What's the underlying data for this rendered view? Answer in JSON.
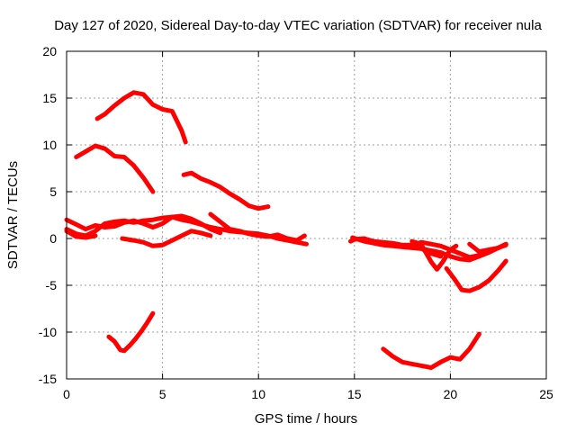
{
  "chart_data": {
    "type": "line",
    "title": "Day 127 of 2020, Sidereal Day-to-day VTEC variation (SDTVAR) for receiver nula",
    "xlabel": "GPS time / hours",
    "ylabel": "SDTVAR / TECUs",
    "xlim": [
      0,
      25
    ],
    "ylim": [
      -15,
      20
    ],
    "xticks": [
      0,
      5,
      10,
      15,
      20,
      25
    ],
    "yticks": [
      -15,
      -10,
      -5,
      0,
      5,
      10,
      15,
      20
    ],
    "grid": true,
    "color": "#ff0000",
    "series": [
      {
        "name": "s1",
        "points": [
          [
            1.6,
            12.8
          ],
          [
            2.0,
            13.3
          ],
          [
            2.5,
            14.2
          ],
          [
            3.0,
            15.0
          ],
          [
            3.5,
            15.6
          ],
          [
            4.0,
            15.4
          ],
          [
            4.5,
            14.3
          ],
          [
            5.0,
            13.8
          ],
          [
            5.5,
            13.6
          ],
          [
            6.0,
            11.5
          ],
          [
            6.2,
            10.3
          ]
        ]
      },
      {
        "name": "s2",
        "points": [
          [
            0.5,
            8.7
          ],
          [
            1.0,
            9.3
          ],
          [
            1.5,
            9.9
          ],
          [
            2.0,
            9.6
          ],
          [
            2.5,
            8.8
          ],
          [
            3.0,
            8.7
          ],
          [
            3.5,
            7.8
          ],
          [
            4.0,
            6.5
          ],
          [
            4.5,
            5.0
          ]
        ]
      },
      {
        "name": "s3",
        "points": [
          [
            6.1,
            6.8
          ],
          [
            6.5,
            7.0
          ],
          [
            7.0,
            6.4
          ],
          [
            7.5,
            6.0
          ],
          [
            8.0,
            5.5
          ],
          [
            8.5,
            4.8
          ],
          [
            9.0,
            4.2
          ],
          [
            9.5,
            3.5
          ],
          [
            10.0,
            3.2
          ],
          [
            10.5,
            3.4
          ]
        ]
      },
      {
        "name": "s4",
        "points": [
          [
            0.0,
            2.0
          ],
          [
            0.5,
            1.5
          ],
          [
            1.0,
            1.0
          ],
          [
            1.5,
            1.4
          ],
          [
            2.0,
            1.2
          ],
          [
            2.5,
            1.3
          ],
          [
            3.0,
            1.7
          ],
          [
            3.5,
            1.9
          ],
          [
            4.0,
            1.6
          ],
          [
            4.5,
            1.2
          ],
          [
            5.0,
            1.6
          ],
          [
            5.5,
            2.3
          ],
          [
            6.0,
            2.0
          ],
          [
            6.5,
            1.8
          ],
          [
            7.0,
            1.5
          ],
          [
            7.5,
            1.2
          ],
          [
            8.0,
            1.0
          ],
          [
            8.5,
            0.8
          ],
          [
            9.0,
            0.7
          ],
          [
            9.5,
            0.6
          ],
          [
            10.0,
            0.5
          ],
          [
            10.5,
            0.3
          ],
          [
            11.0,
            0.0
          ],
          [
            11.5,
            -0.2
          ],
          [
            12.0,
            -0.4
          ],
          [
            12.5,
            -0.6
          ]
        ]
      },
      {
        "name": "s5",
        "points": [
          [
            0.0,
            1.0
          ],
          [
            0.5,
            0.5
          ],
          [
            1.0,
            0.3
          ],
          [
            1.5,
            0.8
          ],
          [
            2.0,
            1.6
          ],
          [
            2.5,
            1.8
          ],
          [
            3.0,
            1.9
          ],
          [
            3.5,
            1.7
          ],
          [
            4.0,
            1.9
          ],
          [
            4.5,
            2.0
          ],
          [
            5.0,
            2.2
          ],
          [
            5.5,
            2.3
          ],
          [
            6.0,
            2.4
          ],
          [
            6.5,
            2.1
          ],
          [
            7.0,
            1.6
          ],
          [
            7.5,
            1.0
          ],
          [
            8.0,
            0.6
          ]
        ]
      },
      {
        "name": "s6",
        "points": [
          [
            0.0,
            0.8
          ],
          [
            0.5,
            0.2
          ],
          [
            1.0,
            0.1
          ],
          [
            1.5,
            0.3
          ]
        ]
      },
      {
        "name": "s7",
        "points": [
          [
            2.9,
            0.0
          ],
          [
            3.5,
            -0.2
          ],
          [
            4.0,
            -0.4
          ],
          [
            4.5,
            -0.8
          ],
          [
            5.0,
            -0.7
          ],
          [
            5.5,
            -0.2
          ],
          [
            6.0,
            0.3
          ],
          [
            6.5,
            0.8
          ],
          [
            7.0,
            0.6
          ],
          [
            7.5,
            0.3
          ]
        ]
      },
      {
        "name": "s8",
        "points": [
          [
            7.5,
            2.6
          ],
          [
            8.0,
            1.8
          ],
          [
            8.5,
            1.0
          ],
          [
            9.0,
            0.8
          ],
          [
            9.5,
            0.5
          ],
          [
            10.0,
            0.3
          ],
          [
            10.5,
            0.2
          ],
          [
            11.0,
            0.4
          ],
          [
            11.5,
            0.0
          ],
          [
            12.0,
            -0.2
          ],
          [
            12.4,
            0.3
          ]
        ]
      },
      {
        "name": "s9",
        "points": [
          [
            2.2,
            -10.5
          ],
          [
            2.5,
            -11.0
          ],
          [
            2.8,
            -11.9
          ],
          [
            3.0,
            -12.0
          ],
          [
            3.3,
            -11.4
          ],
          [
            3.6,
            -10.7
          ],
          [
            3.9,
            -9.9
          ],
          [
            4.2,
            -9.0
          ],
          [
            4.5,
            -8.0
          ]
        ]
      },
      {
        "name": "s10",
        "points": [
          [
            14.8,
            -0.3
          ],
          [
            15.0,
            -0.1
          ],
          [
            15.5,
            0.0
          ],
          [
            16.0,
            -0.3
          ],
          [
            16.5,
            -0.4
          ],
          [
            17.0,
            -0.5
          ],
          [
            17.5,
            -0.7
          ],
          [
            18.0,
            -0.7
          ],
          [
            18.5,
            -0.4
          ],
          [
            19.0,
            -0.6
          ],
          [
            19.5,
            -0.8
          ],
          [
            20.0,
            -1.2
          ],
          [
            20.5,
            -1.6
          ],
          [
            21.0,
            -2.0
          ],
          [
            21.5,
            -1.8
          ],
          [
            22.0,
            -1.3
          ],
          [
            22.5,
            -1.0
          ],
          [
            22.9,
            -0.6
          ]
        ]
      },
      {
        "name": "s11",
        "points": [
          [
            14.9,
            0.1
          ],
          [
            15.5,
            -0.3
          ],
          [
            16.0,
            -0.5
          ],
          [
            16.5,
            -0.7
          ],
          [
            17.0,
            -0.8
          ],
          [
            17.5,
            -0.9
          ],
          [
            18.0,
            -1.0
          ],
          [
            18.5,
            -1.1
          ],
          [
            19.0,
            -1.3
          ],
          [
            19.5,
            -1.5
          ],
          [
            20.0,
            -1.9
          ],
          [
            20.5,
            -2.2
          ],
          [
            21.0,
            -2.3
          ],
          [
            21.5,
            -1.9
          ],
          [
            22.0,
            -1.5
          ],
          [
            22.5,
            -1.0
          ],
          [
            22.9,
            -0.7
          ]
        ]
      },
      {
        "name": "s12",
        "points": [
          [
            18.0,
            -0.3
          ],
          [
            18.5,
            -0.7
          ],
          [
            19.0,
            -2.5
          ],
          [
            19.3,
            -3.3
          ],
          [
            19.6,
            -2.5
          ],
          [
            20.0,
            -1.2
          ],
          [
            20.3,
            -0.8
          ]
        ]
      },
      {
        "name": "s13",
        "points": [
          [
            18.2,
            -0.4
          ],
          [
            18.6,
            -1.2
          ],
          [
            19.0,
            -1.6
          ],
          [
            19.5,
            -1.9
          ]
        ]
      },
      {
        "name": "s14",
        "points": [
          [
            19.8,
            -3.2
          ],
          [
            20.2,
            -4.3
          ],
          [
            20.6,
            -5.5
          ],
          [
            21.0,
            -5.6
          ],
          [
            21.5,
            -5.2
          ],
          [
            22.0,
            -4.5
          ],
          [
            22.5,
            -3.4
          ],
          [
            22.9,
            -2.4
          ]
        ]
      },
      {
        "name": "s15",
        "points": [
          [
            21.0,
            -0.6
          ],
          [
            21.5,
            -1.4
          ],
          [
            22.0,
            -1.2
          ],
          [
            22.5,
            -1.0
          ],
          [
            22.9,
            -0.6
          ]
        ]
      },
      {
        "name": "s16",
        "points": [
          [
            16.5,
            -11.8
          ],
          [
            17.0,
            -12.6
          ],
          [
            17.5,
            -13.2
          ],
          [
            18.0,
            -13.4
          ],
          [
            18.5,
            -13.6
          ],
          [
            19.0,
            -13.8
          ],
          [
            19.5,
            -13.2
          ],
          [
            20.0,
            -12.7
          ],
          [
            20.5,
            -12.9
          ],
          [
            21.0,
            -11.8
          ],
          [
            21.5,
            -10.2
          ]
        ]
      }
    ]
  }
}
